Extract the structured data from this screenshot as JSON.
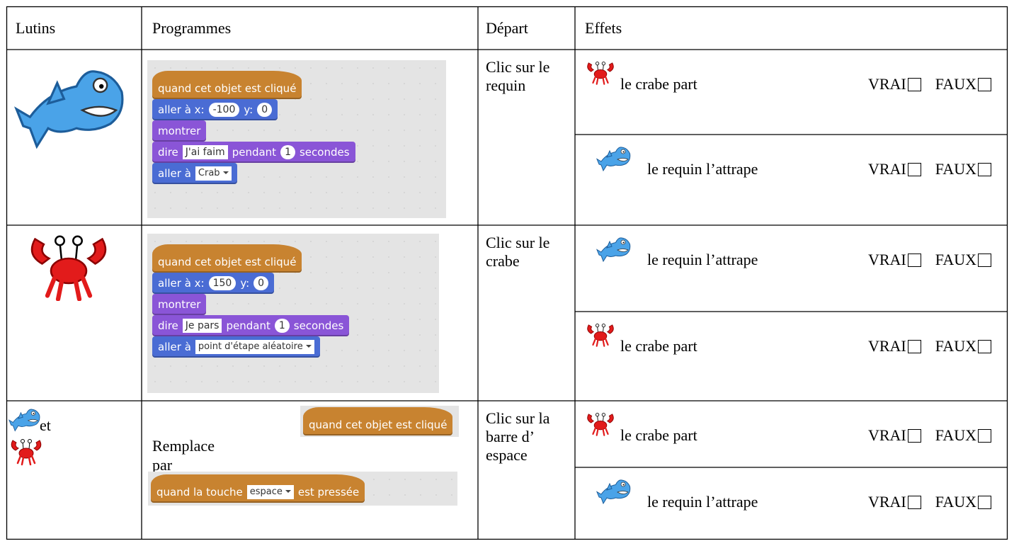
{
  "header": {
    "columns": [
      "Lutins",
      "Programmes",
      "Départ",
      "Effets"
    ]
  },
  "rows": [
    {
      "program": [
        {
          "blocks": [
            {
              "color": "#c88330",
              "parts": [
                {
                  "label": "quand cet objet est cliqué"
                }
              ]
            },
            {
              "color": "#4a6cd4",
              "parts": [
                {
                  "label": "aller à x:"
                },
                {
                  "number": "-100"
                },
                {
                  "label": "y:"
                },
                {
                  "number": "0"
                }
              ]
            },
            {
              "color": "#8a55d7",
              "parts": [
                {
                  "label": "montrer"
                }
              ]
            },
            {
              "color": "#8a55d7",
              "parts": [
                {
                  "label": "dire"
                },
                {
                  "text": "J'ai faim"
                },
                {
                  "label": "pendant"
                },
                {
                  "number": "1"
                },
                {
                  "label": "secondes"
                }
              ]
            },
            {
              "color": "#4a6cd4",
              "parts": [
                {
                  "label": "aller à"
                },
                {
                  "dropdown": "Crab"
                }
              ]
            }
          ]
        }
      ],
      "depart": "Clic sur le requin",
      "effects": [
        {
          "text": "le crabe part",
          "options": [
            "VRAI",
            "FAUX"
          ]
        },
        {
          "text": "le requin l’attrape",
          "options": [
            "VRAI",
            "FAUX"
          ]
        }
      ]
    },
    {
      "program": [
        {
          "blocks": [
            {
              "color": "#c88330",
              "parts": [
                {
                  "label": "quand cet objet est cliqué"
                }
              ]
            },
            {
              "color": "#4a6cd4",
              "parts": [
                {
                  "label": "aller à x:"
                },
                {
                  "number": "150"
                },
                {
                  "label": "y:"
                },
                {
                  "number": "0"
                }
              ]
            },
            {
              "color": "#8a55d7",
              "parts": [
                {
                  "label": "montrer"
                }
              ]
            },
            {
              "color": "#8a55d7",
              "parts": [
                {
                  "label": "dire"
                },
                {
                  "text": "Je pars"
                },
                {
                  "label": "pendant"
                },
                {
                  "number": "1"
                },
                {
                  "label": "secondes"
                }
              ]
            },
            {
              "color": "#4a6cd4",
              "parts": [
                {
                  "label": "aller à"
                },
                {
                  "dropdown": "point d'étape aléatoire"
                }
              ]
            }
          ]
        }
      ],
      "depart": "Clic sur le crabe",
      "effects": [
        {
          "text": "le requin l’attrape",
          "options": [
            "VRAI",
            "FAUX"
          ]
        },
        {
          "text": "le crabe part",
          "options": [
            "VRAI",
            "FAUX"
          ]
        }
      ]
    },
    {
      "sprite_text": "et",
      "program": [
        {
          "text": "Remplace"
        },
        {
          "blocks": [
            {
              "color": "#c88330",
              "parts": [
                {
                  "label": "quand cet objet est cliqué"
                }
              ]
            }
          ]
        },
        {
          "text": "par"
        },
        {
          "blocks": [
            {
              "color": "#c88330",
              "parts": [
                {
                  "label": "quand la touche"
                },
                {
                  "dropdown": "espace"
                },
                {
                  "label": "est pressée"
                }
              ]
            }
          ]
        }
      ],
      "depart": "Clic sur la barre d’ espace",
      "effects": [
        {
          "text": "le crabe part",
          "options": [
            "VRAI",
            "FAUX"
          ]
        },
        {
          "text": "le requin l’attrape",
          "options": [
            "VRAI",
            "FAUX"
          ]
        }
      ]
    }
  ]
}
